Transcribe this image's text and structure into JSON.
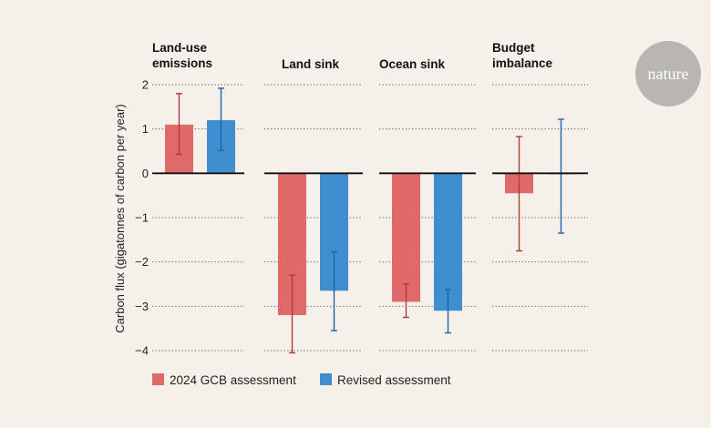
{
  "logo": {
    "text": "nature",
    "color": "#b9b6b2"
  },
  "colors": {
    "gcb": "#e06a6a",
    "gcb_dark": "#b33a3a",
    "revised": "#3e8ed0",
    "revised_dark": "#1f64a8"
  },
  "chart_data": {
    "type": "bar",
    "ylabel": "Carbon flux (gigatonnes of carbon per year)",
    "ylim": [
      -4,
      2
    ],
    "yticks": [
      2,
      1,
      0,
      -1,
      -2,
      -3,
      -4
    ],
    "ytick_labels": [
      "2",
      "1",
      "0",
      "−1",
      "−2",
      "−3",
      "−4"
    ],
    "grid": "dotted horizontal",
    "legend_placement": "bottom",
    "categories": [
      "Land-use\nemissions",
      "Land sink",
      "Ocean sink",
      "Budget\nimbalance"
    ],
    "series": [
      {
        "name": "2024 GCB assessment",
        "color": "#e06a6a",
        "values": [
          1.1,
          -3.2,
          -2.9,
          -0.45
        ],
        "err_low": [
          0.43,
          -4.05,
          -3.25,
          -1.75
        ],
        "err_high": [
          1.8,
          -2.3,
          -2.5,
          0.83
        ]
      },
      {
        "name": "Revised assessment",
        "color": "#3e8ed0",
        "values": [
          1.2,
          -2.65,
          -3.1,
          -0.02
        ],
        "err_low": [
          0.52,
          -3.55,
          -3.6,
          -1.35
        ],
        "err_high": [
          1.92,
          -1.77,
          -2.62,
          1.22
        ]
      }
    ]
  }
}
